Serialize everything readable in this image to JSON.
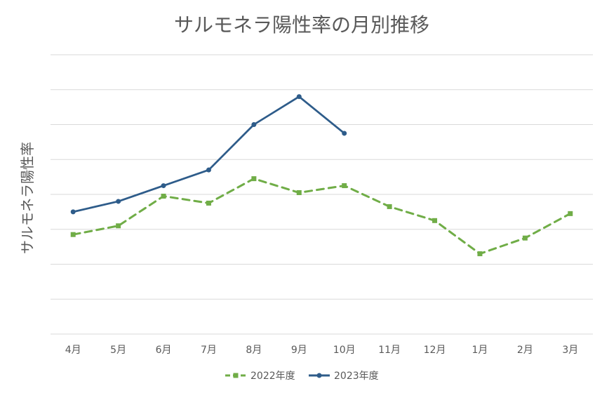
{
  "chart_data": {
    "type": "line",
    "title": "サルモネラ陽性率の月別推移",
    "xlabel": "",
    "ylabel": "サルモネラ陽性率",
    "categories": [
      "4月",
      "5月",
      "6月",
      "7月",
      "8月",
      "9月",
      "10月",
      "11月",
      "12月",
      "1月",
      "2月",
      "3月"
    ],
    "ylim": [
      0,
      8
    ],
    "y_tick_labels_shown": false,
    "grid": true,
    "legend_position": "bottom",
    "series": [
      {
        "name": "2022年度",
        "color": "#70AD47",
        "line_style": "dashed",
        "marker": "square",
        "values": [
          2.85,
          3.1,
          3.95,
          3.75,
          4.45,
          4.05,
          4.25,
          3.65,
          3.25,
          2.3,
          2.75,
          3.45
        ]
      },
      {
        "name": "2023年度",
        "color": "#2E5C8A",
        "line_style": "solid",
        "marker": "circle",
        "values": [
          3.5,
          3.8,
          4.25,
          4.7,
          6.0,
          6.8,
          5.75,
          null,
          null,
          null,
          null,
          null
        ]
      }
    ]
  }
}
